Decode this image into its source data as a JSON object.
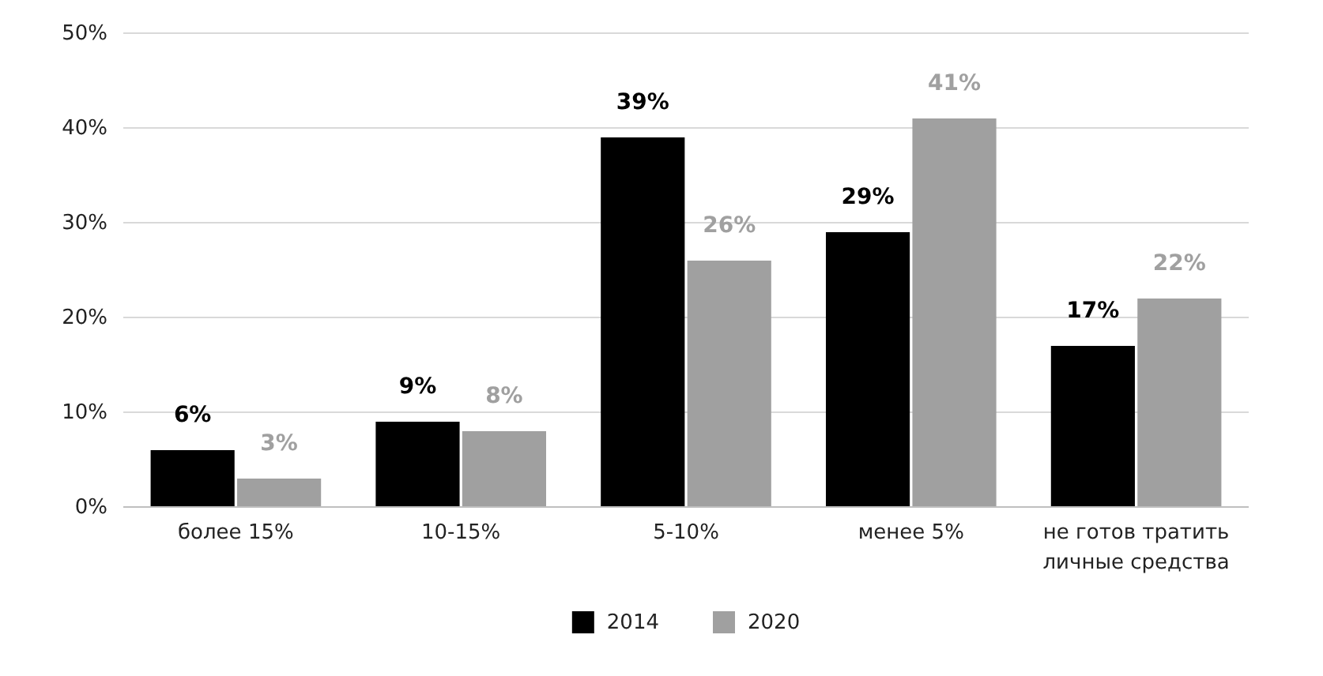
{
  "chart_data": {
    "type": "bar",
    "categories": [
      "более 15%",
      "10-15%",
      "5-10%",
      "менее 5%",
      "не готов тратить личные средства"
    ],
    "series": [
      {
        "name": "2014",
        "color": "#000000",
        "values": [
          6,
          9,
          39,
          29,
          17
        ],
        "value_labels": [
          "6%",
          "9%",
          "39%",
          "29%",
          "17%"
        ]
      },
      {
        "name": "2020",
        "color": "#a0a0a0",
        "values": [
          3,
          8,
          26,
          41,
          22
        ],
        "value_labels": [
          "3%",
          "8%",
          "26%",
          "41%",
          "22%"
        ]
      }
    ],
    "ylim": [
      0,
      50
    ],
    "yticks": [
      {
        "value": 0,
        "label": "0%"
      },
      {
        "value": 10,
        "label": "10%"
      },
      {
        "value": 20,
        "label": "20%"
      },
      {
        "value": 30,
        "label": "30%"
      },
      {
        "value": 40,
        "label": "40%"
      },
      {
        "value": 50,
        "label": "50%"
      }
    ],
    "grid": "y",
    "legend": "bottom"
  }
}
